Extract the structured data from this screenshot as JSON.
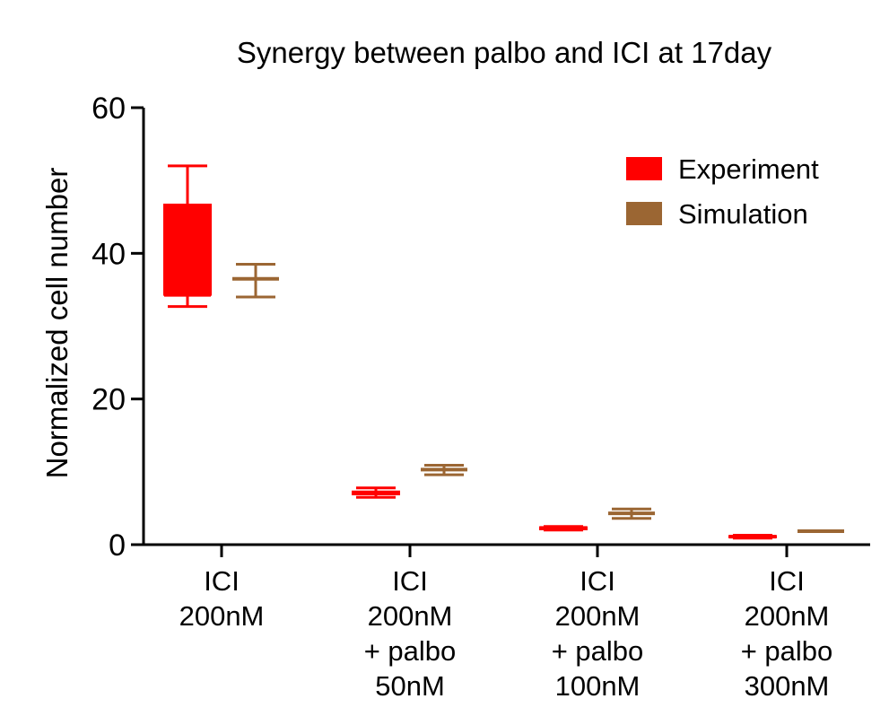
{
  "chart_data": {
    "type": "box",
    "title": "Synergy between palbo and ICI at 17day",
    "xlabel": "",
    "ylabel": "Normalized cell number",
    "ylim": [
      0,
      60
    ],
    "yticks": [
      0,
      20,
      40,
      60
    ],
    "grid": false,
    "legend_position": "top-right",
    "categories": [
      [
        "ICI",
        "200nM"
      ],
      [
        "ICI",
        "200nM",
        "+ palbo",
        "50nM"
      ],
      [
        "ICI",
        "200nM",
        "+ palbo",
        "100nM"
      ],
      [
        "ICI",
        "200nM",
        "+ palbo",
        "300nM"
      ]
    ],
    "series": [
      {
        "name": "Experiment",
        "color": "#ff0000",
        "boxes": [
          {
            "min": 32.7,
            "q1": 34.3,
            "median": 34.3,
            "q3": 46.7,
            "max": 52.0
          },
          {
            "min": 6.5,
            "q1": 6.9,
            "median": 7.1,
            "q3": 7.3,
            "max": 7.8
          },
          {
            "min": 2.0,
            "q1": 2.1,
            "median": 2.3,
            "q3": 2.4,
            "max": 2.5
          },
          {
            "min": 0.9,
            "q1": 1.0,
            "median": 1.1,
            "q3": 1.2,
            "max": 1.3
          }
        ]
      },
      {
        "name": "Simulation",
        "color": "#9b6633",
        "boxes": [
          {
            "min": 34.0,
            "q1": 36.5,
            "median": 36.5,
            "q3": 36.5,
            "max": 38.5
          },
          {
            "min": 9.6,
            "q1": 10.3,
            "median": 10.3,
            "q3": 10.3,
            "max": 10.9
          },
          {
            "min": 3.6,
            "q1": 4.3,
            "median": 4.3,
            "q3": 4.3,
            "max": 4.9
          },
          {
            "min": 1.8,
            "q1": 1.85,
            "median": 1.85,
            "q3": 1.85,
            "max": 1.9
          }
        ]
      }
    ]
  }
}
